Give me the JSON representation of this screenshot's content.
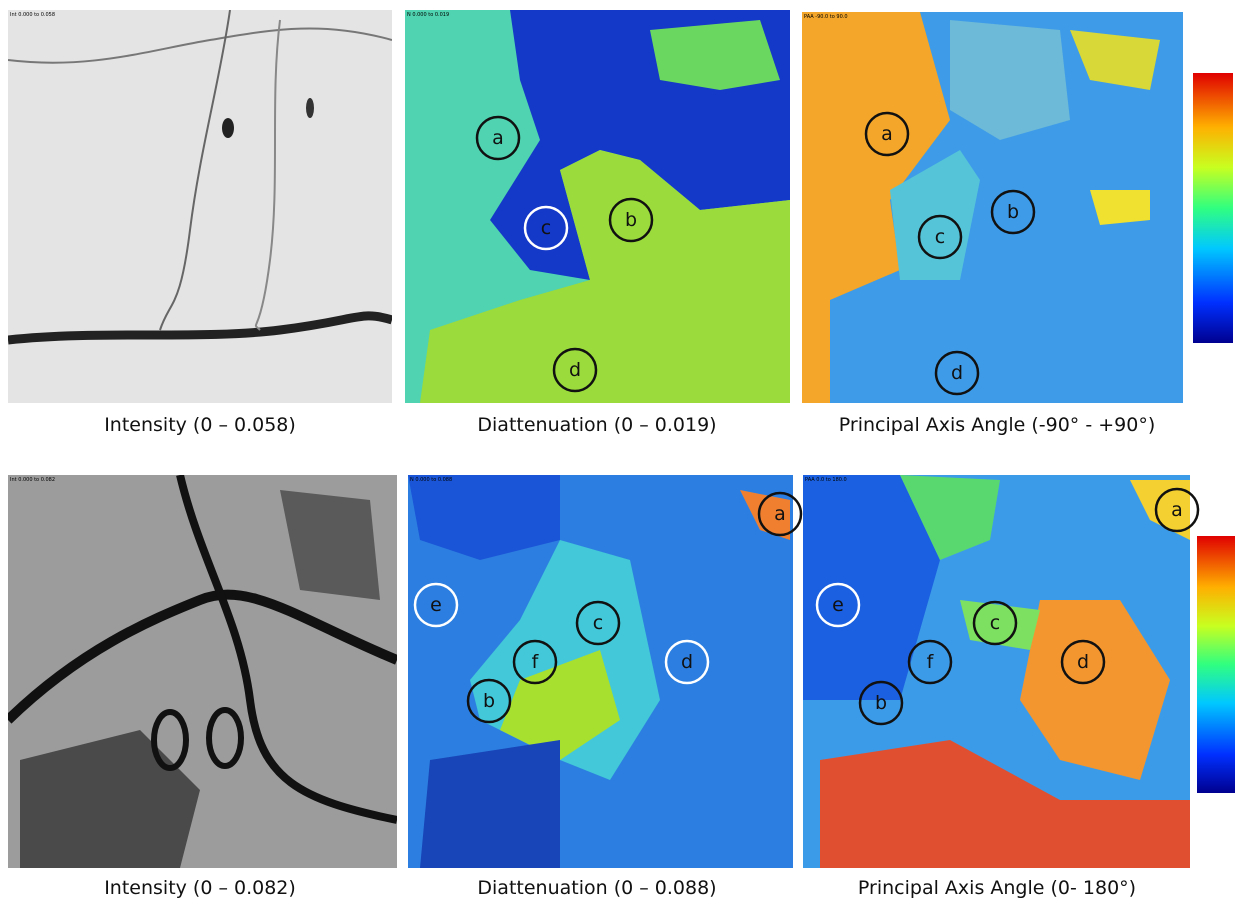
{
  "panels": [
    {
      "header": "Int 0.000 to 0.058",
      "caption": "Intensity (0 – 0.058)",
      "labels": []
    },
    {
      "header": "N 0.000 to 0.019",
      "caption": "Diattenuation (0 – 0.019)",
      "labels": [
        "a",
        "c",
        "b",
        "d"
      ]
    },
    {
      "header": "PAA -90.0 to 90.0",
      "caption": "Principal Axis Angle (-90° - +90°)",
      "labels": [
        "a",
        "c",
        "b",
        "d"
      ]
    },
    {
      "header": "Int 0.000 to 0.082",
      "caption": "Intensity (0 – 0.082)",
      "labels": []
    },
    {
      "header": "N 0.000 to 0.088",
      "caption": "Diattenuation (0 – 0.088)",
      "labels": [
        "a",
        "e",
        "c",
        "d",
        "f",
        "b"
      ]
    },
    {
      "header": "PAA 0.0 to 180.0",
      "caption": "Principal Axis Angle (0- 180°)",
      "labels": [
        "a",
        "e",
        "c",
        "d",
        "f",
        "b"
      ]
    }
  ]
}
